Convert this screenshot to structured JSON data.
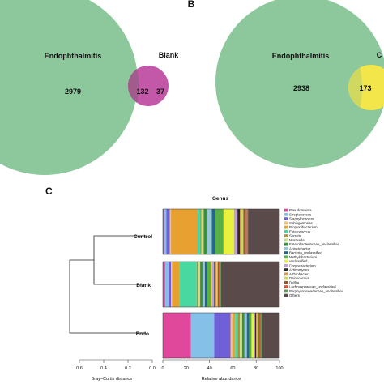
{
  "panels": {
    "b_label": "B",
    "c_label": "C"
  },
  "venn_a": {
    "big_label": "Endophthalmitis",
    "small_label": "Blank",
    "only_big": "2979",
    "overlap": "132",
    "only_small": "37",
    "big_color": "#8cc89c",
    "small_color": "#c458a8",
    "overlap_color": "#a05c8c"
  },
  "venn_b": {
    "big_label": "Endophthalmitis",
    "small_label_fragment": "C",
    "only_big": "2938",
    "overlap": "173",
    "big_color": "#8cc89c",
    "small_color": "#f2e64a",
    "overlap_color": "#d0d860"
  },
  "chart_data": {
    "type": "bar",
    "orientation": "horizontal",
    "stacked": true,
    "title": "Genus",
    "xlabel": "Relative abundance",
    "xlim": [
      0,
      100
    ],
    "x_ticks": [
      "0",
      "20",
      "40",
      "60",
      "80",
      "100"
    ],
    "categories": [
      "Control",
      "Blank",
      "Endo"
    ],
    "dendrogram": {
      "xlabel": "Bray–Curtis distance",
      "ticks": [
        "0.6",
        "0.4",
        "0.2",
        "0.0"
      ],
      "range": [
        0.6,
        0.0
      ],
      "inner_merge": {
        "members": [
          "Control",
          "Blank"
        ],
        "height": 0.5
      },
      "root_merge": {
        "members": [
          "Control",
          "Blank",
          "Endo"
        ],
        "height": 0.7
      }
    },
    "series": [
      {
        "name": "Pseudomonas",
        "color": "#e0489c",
        "values": [
          1,
          2,
          24
        ]
      },
      {
        "name": "Streptococcus",
        "color": "#84c0e8",
        "values": [
          2,
          3,
          20
        ]
      },
      {
        "name": "Staphylococcus",
        "color": "#7060d8",
        "values": [
          3,
          2,
          14
        ]
      },
      {
        "name": "Sphingomonas",
        "color": "#f0c080",
        "values": [
          1,
          1,
          2
        ]
      },
      {
        "name": "Propionibacterium",
        "color": "#e8a030",
        "values": [
          23,
          6,
          2
        ]
      },
      {
        "name": "Enterococcus",
        "color": "#48d8a0",
        "values": [
          2,
          15,
          2
        ]
      },
      {
        "name": "Serratia",
        "color": "#b09040",
        "values": [
          1,
          1,
          2
        ]
      },
      {
        "name": "Moraxella",
        "color": "#c8e088",
        "values": [
          2,
          2,
          2
        ]
      },
      {
        "name": "Enterobacteriaceae_unclassified",
        "color": "#3a9040",
        "values": [
          3,
          2,
          2
        ]
      },
      {
        "name": "Acinetobacter",
        "color": "#98c8d8",
        "values": [
          4,
          2,
          2
        ]
      },
      {
        "name": "Bacteria_unclassified",
        "color": "#226888",
        "values": [
          3,
          2,
          2
        ]
      },
      {
        "name": "Methylobacterium",
        "color": "#58b048",
        "values": [
          7,
          3,
          2
        ]
      },
      {
        "name": "unclassified",
        "color": "#e8f040",
        "values": [
          9,
          1,
          2
        ]
      },
      {
        "name": "Corynebacterium",
        "color": "#c0a0d8",
        "values": [
          3,
          2,
          1
        ]
      },
      {
        "name": "Actinomyces",
        "color": "#2a2a2a",
        "values": [
          2,
          1,
          1
        ]
      },
      {
        "name": "Arthrobacter",
        "color": "#d09850",
        "values": [
          1,
          1,
          1
        ]
      },
      {
        "name": "Deinococcus",
        "color": "#c8d858",
        "values": [
          2,
          1,
          1
        ]
      },
      {
        "name": "Delftia",
        "color": "#985830",
        "values": [
          2,
          1,
          1
        ]
      },
      {
        "name": "Lachnospiraceae_unclassified",
        "color": "#e05038",
        "values": [
          1,
          1,
          1
        ]
      },
      {
        "name": "Porphyromonadaceae_unclassified",
        "color": "#609860",
        "values": [
          1,
          1,
          1
        ]
      },
      {
        "name": "Others",
        "color": "#5a4a4a",
        "values": [
          27,
          50,
          15
        ]
      }
    ]
  }
}
